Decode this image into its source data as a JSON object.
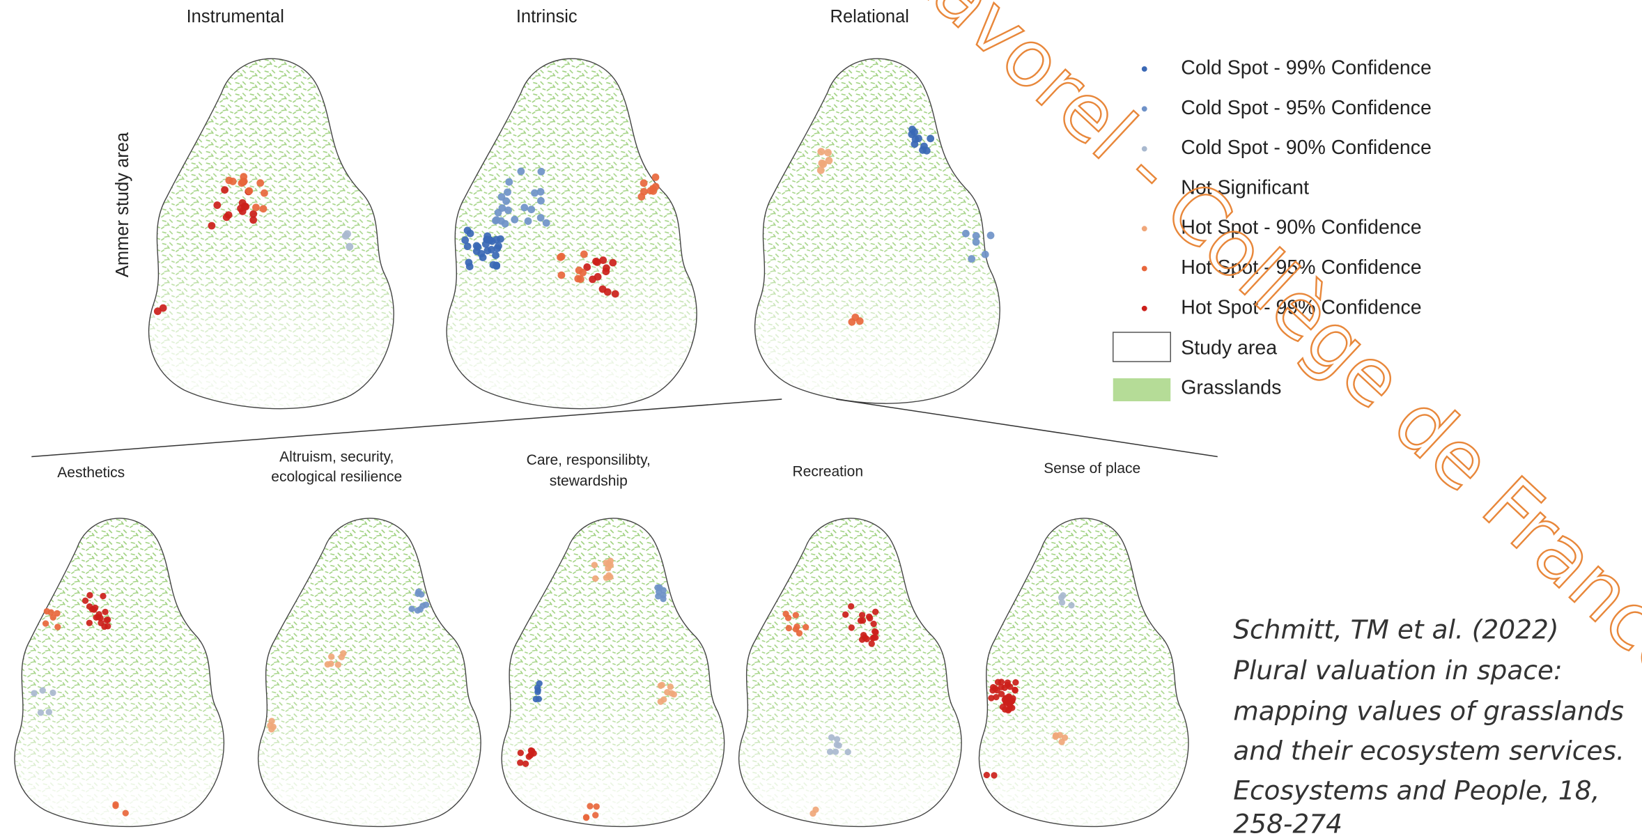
{
  "top_panel": {
    "row_label": "Ammer study area",
    "titles": [
      "Instrumental",
      "Intrinsic",
      "Relational"
    ]
  },
  "bottom_panel": {
    "titles": [
      [
        "Aesthetics"
      ],
      [
        "Altruism, security,",
        "ecological resilience"
      ],
      [
        "Care, responsilibty,",
        "stewardship"
      ],
      [
        "Recreation"
      ],
      [
        "Sense of place"
      ]
    ]
  },
  "legend": {
    "items": [
      {
        "label": "Cold Spot - 99% Confidence",
        "color": "#3a68b5"
      },
      {
        "label": "Cold Spot - 95% Confidence",
        "color": "#6f92c8"
      },
      {
        "label": "Cold Spot - 90% Confidence",
        "color": "#a9b9cf"
      },
      {
        "label": "Not Significant",
        "color": "#ffffff"
      },
      {
        "label": "Hot Spot - 90% Confidence",
        "color": "#f0a77a"
      },
      {
        "label": "Hot Spot - 95% Confidence",
        "color": "#e8673c"
      },
      {
        "label": "Hot Spot - 99% Confidence",
        "color": "#cc1f1a"
      }
    ],
    "study_area": "Study area",
    "grasslands": "Grasslands"
  },
  "citation": [
    "Schmitt, TM et al. (2022)",
    "Plural valuation in space:",
    "mapping values of grasslands",
    "and their ecosystem services.",
    "Ecosystems and People, 18,",
    "258-274"
  ],
  "watermark": "Lavorel - Collège de France"
}
